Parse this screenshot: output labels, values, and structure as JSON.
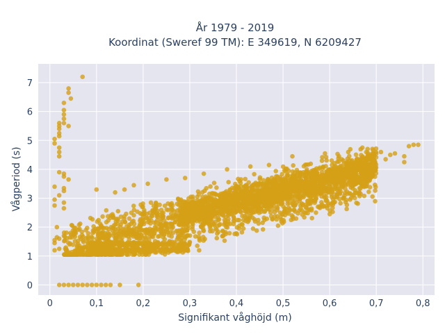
{
  "chart_data": {
    "type": "scatter",
    "title": [
      "År 1979 - 2019",
      "Koordinat (Sweref 99 TM): E 349619, N 6209427"
    ],
    "xlabel": "Signifikant våghöjd (m)",
    "ylabel": "Vågperiod (s)",
    "xlim": [
      -0.025,
      0.825
    ],
    "ylim": [
      -0.35,
      7.65
    ],
    "x_ticks": [
      0,
      0.1,
      0.2,
      0.3,
      0.4,
      0.5,
      0.6,
      0.7,
      0.8
    ],
    "x_tick_labels": [
      "0",
      "0,1",
      "0,2",
      "0,3",
      "0,4",
      "0,5",
      "0,6",
      "0,7",
      "0,8"
    ],
    "y_ticks": [
      0,
      1,
      2,
      3,
      4,
      5,
      6,
      7
    ],
    "y_tick_labels": [
      "0",
      "1",
      "2",
      "3",
      "4",
      "5",
      "6",
      "7"
    ],
    "grid": true,
    "legend": "none",
    "colors": {
      "marker": "#D4A017",
      "plot_bg": "#E5E5EF",
      "grid": "#ffffff",
      "text": "#2a3f5f"
    },
    "points": [
      {
        "x": 0.07,
        "y": 7.2
      },
      {
        "x": 0.04,
        "y": 6.8
      },
      {
        "x": 0.04,
        "y": 6.65
      },
      {
        "x": 0.045,
        "y": 6.45
      },
      {
        "x": 0.03,
        "y": 6.3
      },
      {
        "x": 0.03,
        "y": 6.05
      },
      {
        "x": 0.03,
        "y": 5.9
      },
      {
        "x": 0.03,
        "y": 5.75
      },
      {
        "x": 0.02,
        "y": 5.6
      },
      {
        "x": 0.02,
        "y": 5.5
      },
      {
        "x": 0.02,
        "y": 5.4
      },
      {
        "x": 0.04,
        "y": 5.5
      },
      {
        "x": 0.03,
        "y": 5.6
      },
      {
        "x": 0.02,
        "y": 5.25
      },
      {
        "x": 0.02,
        "y": 5.15
      },
      {
        "x": 0.01,
        "y": 5.05
      },
      {
        "x": 0.01,
        "y": 4.9
      },
      {
        "x": 0.02,
        "y": 4.75
      },
      {
        "x": 0.02,
        "y": 4.6
      },
      {
        "x": 0.02,
        "y": 4.45
      },
      {
        "x": 0.03,
        "y": 3.85
      },
      {
        "x": 0.03,
        "y": 3.75
      },
      {
        "x": 0.04,
        "y": 3.65
      },
      {
        "x": 0.02,
        "y": 3.9
      },
      {
        "x": 0.01,
        "y": 3.4
      },
      {
        "x": 0.03,
        "y": 3.35
      },
      {
        "x": 0.03,
        "y": 3.25
      },
      {
        "x": 0.02,
        "y": 3.1
      },
      {
        "x": 0.01,
        "y": 2.95
      },
      {
        "x": 0.01,
        "y": 2.75
      },
      {
        "x": 0.03,
        "y": 2.85
      },
      {
        "x": 0.03,
        "y": 2.65
      },
      {
        "x": 0.015,
        "y": 2.0
      },
      {
        "x": 0.015,
        "y": 1.65
      },
      {
        "x": 0.01,
        "y": 1.55
      },
      {
        "x": 0.01,
        "y": 1.45
      },
      {
        "x": 0.01,
        "y": 1.2
      },
      {
        "x": 0.02,
        "y": 1.25
      },
      {
        "x": 0.02,
        "y": 1.6
      },
      {
        "x": 0.03,
        "y": 1.7
      },
      {
        "x": 0.02,
        "y": 0
      },
      {
        "x": 0.03,
        "y": 0
      },
      {
        "x": 0.04,
        "y": 0
      },
      {
        "x": 0.05,
        "y": 0
      },
      {
        "x": 0.06,
        "y": 0
      },
      {
        "x": 0.07,
        "y": 0
      },
      {
        "x": 0.08,
        "y": 0
      },
      {
        "x": 0.09,
        "y": 0
      },
      {
        "x": 0.1,
        "y": 0
      },
      {
        "x": 0.11,
        "y": 0
      },
      {
        "x": 0.12,
        "y": 0
      },
      {
        "x": 0.13,
        "y": 0
      },
      {
        "x": 0.15,
        "y": 0
      },
      {
        "x": 0.19,
        "y": 0
      },
      {
        "x": 0.1,
        "y": 3.3
      },
      {
        "x": 0.14,
        "y": 3.2
      },
      {
        "x": 0.16,
        "y": 3.3
      },
      {
        "x": 0.18,
        "y": 3.45
      },
      {
        "x": 0.21,
        "y": 3.5
      },
      {
        "x": 0.25,
        "y": 3.65
      },
      {
        "x": 0.29,
        "y": 3.7
      },
      {
        "x": 0.33,
        "y": 3.85
      },
      {
        "x": 0.38,
        "y": 4.0
      },
      {
        "x": 0.43,
        "y": 4.1
      },
      {
        "x": 0.47,
        "y": 4.15
      },
      {
        "x": 0.52,
        "y": 4.45
      },
      {
        "x": 0.59,
        "y": 4.55
      },
      {
        "x": 0.62,
        "y": 4.45
      },
      {
        "x": 0.64,
        "y": 4.6
      },
      {
        "x": 0.67,
        "y": 4.75
      },
      {
        "x": 0.7,
        "y": 4.55
      },
      {
        "x": 0.71,
        "y": 4.6
      },
      {
        "x": 0.73,
        "y": 4.5
      },
      {
        "x": 0.74,
        "y": 4.55
      },
      {
        "x": 0.76,
        "y": 4.45
      },
      {
        "x": 0.77,
        "y": 4.8
      },
      {
        "x": 0.78,
        "y": 4.85
      },
      {
        "x": 0.79,
        "y": 4.85
      },
      {
        "x": 0.76,
        "y": 4.25
      },
      {
        "x": 0.72,
        "y": 4.35
      },
      {
        "x": 0.32,
        "y": 1.2
      },
      {
        "x": 0.1,
        "y": 1.1
      }
    ],
    "cloud": [
      {
        "x_from": 0.03,
        "x_to": 0.7,
        "y_at_x_from": 1.15,
        "y_at_x_to": 3.9,
        "spread": 1.3,
        "n": 1800
      },
      {
        "x_from": 0.28,
        "x_to": 0.7,
        "y_at_x_from": 2.45,
        "y_at_x_to": 4.1,
        "spread": 0.6,
        "n": 1200
      },
      {
        "x_from": 0.08,
        "x_to": 0.3,
        "y_at_x_from": 1.2,
        "y_at_x_to": 1.2,
        "spread": 0.1,
        "n": 180
      },
      {
        "x_from": 0.08,
        "x_to": 0.3,
        "y_at_x_from": 1.4,
        "y_at_x_to": 1.4,
        "spread": 0.15,
        "n": 150
      }
    ]
  }
}
